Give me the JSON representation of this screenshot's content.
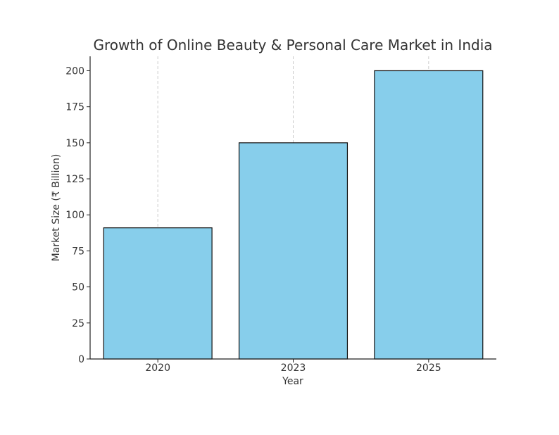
{
  "chart_data": {
    "type": "bar",
    "title": "Growth of Online Beauty & Personal Care Market in India",
    "xlabel": "Year",
    "ylabel": "Market Size (₹ Billion)",
    "categories": [
      "2020",
      "2023",
      "2025"
    ],
    "values": [
      91,
      150,
      200
    ],
    "ylim": [
      0,
      210
    ],
    "yticks": [
      0,
      25,
      50,
      75,
      100,
      125,
      150,
      175,
      200
    ],
    "grid": "vertical dashed",
    "bar_color": "#87CEEB",
    "edge_color": "#111111"
  }
}
